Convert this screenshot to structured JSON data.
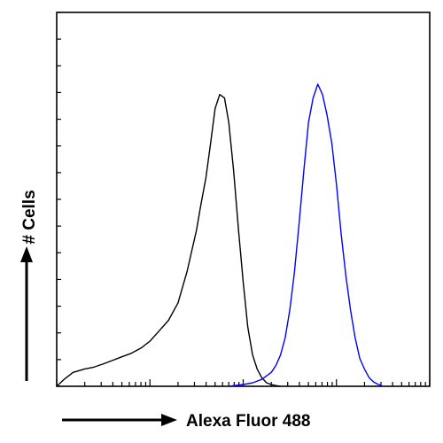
{
  "chart_data": {
    "type": "line",
    "title": "",
    "xlabel": "Alexa Fluor 488",
    "ylabel": "# Cells",
    "x_scale": "log",
    "x_decades": [
      1,
      10,
      100,
      1000,
      10000
    ],
    "xlim": [
      1,
      10000
    ],
    "ylim": [
      0,
      100
    ],
    "x_tick_labels_shown": false,
    "y_tick_labels_shown": false,
    "grid": false,
    "legend": "none",
    "series": [
      {
        "color": "#000000",
        "x": [
          1.0,
          1.2,
          1.5,
          2.0,
          2.5,
          3.2,
          4.0,
          5.0,
          6.3,
          8.0,
          10,
          12.6,
          15.8,
          20,
          25,
          31.6,
          35,
          39.8,
          44.7,
          50,
          56,
          63,
          70,
          79,
          89,
          100,
          112,
          126,
          141,
          158,
          178,
          200,
          224,
          251
        ],
        "y": [
          0,
          2,
          4,
          5,
          5.5,
          6.5,
          7.5,
          8.5,
          9.5,
          11,
          13,
          16,
          19,
          24,
          33,
          45,
          52,
          60,
          70,
          80,
          84,
          83,
          76,
          62,
          45,
          30,
          17,
          9,
          5,
          2.5,
          1,
          0.5,
          0.2,
          0
        ]
      },
      {
        "color": "#0000ff",
        "x": [
          70,
          100,
          126,
          158,
          178,
          200,
          224,
          251,
          282,
          316,
          355,
          398,
          447,
          501,
          562,
          631,
          708,
          794,
          891,
          1000,
          1122,
          1259,
          1413,
          1585,
          1778,
          1995,
          2239,
          2512,
          2818,
          3162
        ],
        "y": [
          0,
          0.5,
          1,
          2,
          3,
          4,
          6,
          9,
          14,
          22,
          33,
          47,
          62,
          76,
          83,
          87,
          84,
          78,
          70,
          58,
          44,
          32,
          22,
          14,
          8,
          5,
          2.5,
          1.2,
          0.5,
          0
        ]
      }
    ]
  }
}
